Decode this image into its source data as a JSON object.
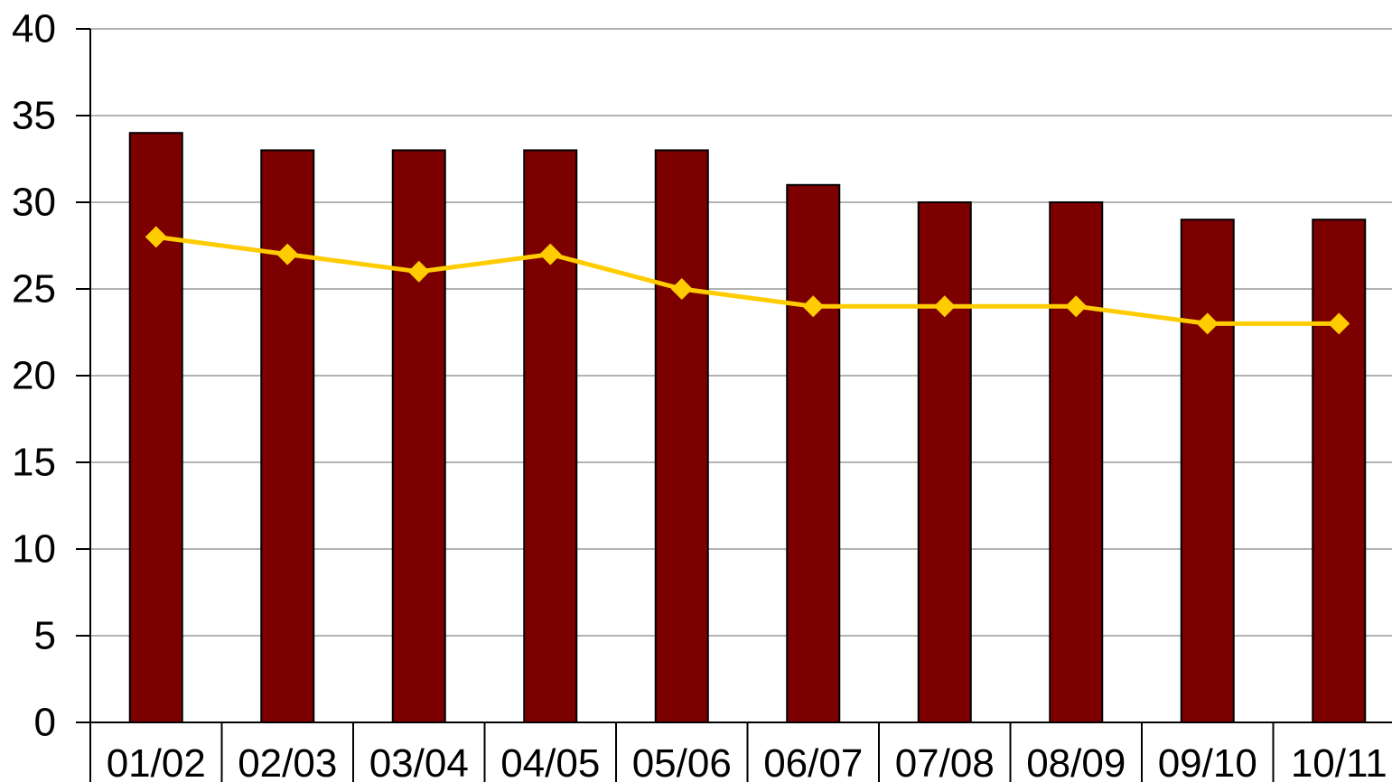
{
  "chart_data": {
    "type": "bar",
    "title": "",
    "xlabel": "",
    "ylabel": "",
    "categories": [
      "01/02",
      "02/03",
      "03/04",
      "04/05",
      "05/06",
      "06/07",
      "07/08",
      "08/09",
      "09/10",
      "10/11"
    ],
    "ylim": [
      0,
      40
    ],
    "yticks": [
      0,
      5,
      10,
      15,
      20,
      25,
      30,
      35,
      40
    ],
    "grid": true,
    "legend": "none",
    "series": [
      {
        "type": "bar",
        "color": "#7d0000",
        "values": [
          34,
          33,
          33,
          33,
          33,
          31,
          30,
          30,
          29,
          29
        ]
      },
      {
        "type": "line",
        "marker": "diamond",
        "color": "#ffcc00",
        "values": [
          28,
          27,
          26,
          27,
          25,
          24,
          24,
          24,
          23,
          23
        ]
      }
    ]
  }
}
